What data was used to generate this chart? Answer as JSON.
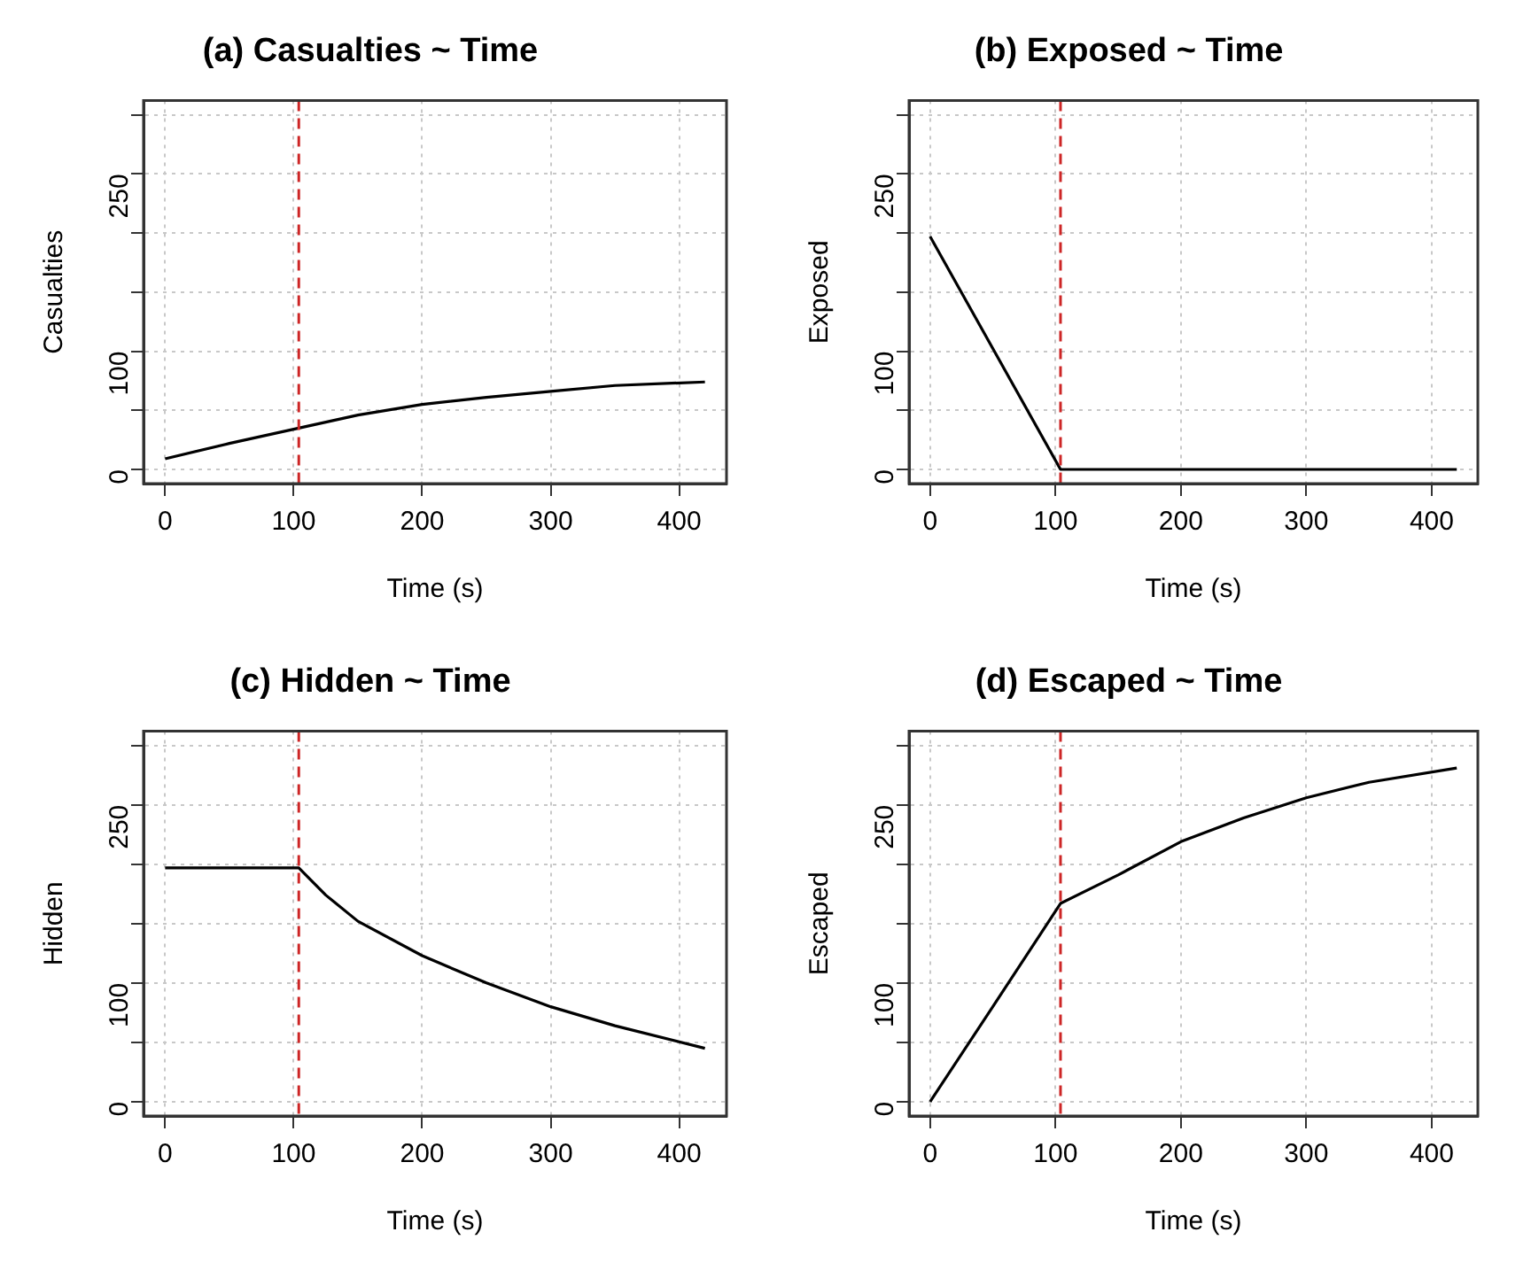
{
  "chart_data": [
    {
      "type": "line",
      "title": "(a) Casualties ~ Time",
      "xlabel": "Time (s)",
      "ylabel": "Casualties",
      "xlim": [
        -16.8,
        436.8
      ],
      "xticks": [
        0,
        100,
        200,
        300,
        400
      ],
      "ylim": [
        -12,
        312
      ],
      "yticks": [
        0,
        {
          "value": 50,
          "label": null
        },
        100,
        {
          "value": 150,
          "label": null
        },
        {
          "value": 200,
          "label": null
        },
        250,
        {
          "value": 300,
          "label": null
        }
      ],
      "grid": true,
      "ref_lines": [
        {
          "axis": "x",
          "value": 104,
          "color": "#cd2626",
          "line_style": "dashed"
        }
      ],
      "series": [
        {
          "color": "#000000",
          "x": [
            0,
            50,
            100,
            150,
            200,
            250,
            300,
            350,
            420
          ],
          "values": [
            9,
            22,
            34,
            46,
            55,
            61,
            66,
            71,
            74
          ]
        }
      ]
    },
    {
      "type": "line",
      "title": "(b) Exposed ~ Time",
      "xlabel": "Time (s)",
      "ylabel": "Exposed",
      "xlim": [
        -16.8,
        436.8
      ],
      "xticks": [
        0,
        100,
        200,
        300,
        400
      ],
      "ylim": [
        -12,
        312
      ],
      "yticks": [
        0,
        {
          "value": 50,
          "label": null
        },
        100,
        {
          "value": 150,
          "label": null
        },
        {
          "value": 200,
          "label": null
        },
        250,
        {
          "value": 300,
          "label": null
        }
      ],
      "grid": true,
      "ref_lines": [
        {
          "axis": "x",
          "value": 104,
          "color": "#cd2626",
          "line_style": "dashed"
        }
      ],
      "series": [
        {
          "color": "#000000",
          "x": [
            0,
            104,
            420
          ],
          "values": [
            197,
            0,
            0
          ]
        }
      ]
    },
    {
      "type": "line",
      "title": "(c) Hidden ~ Time",
      "xlabel": "Time (s)",
      "ylabel": "Hidden",
      "xlim": [
        -16.8,
        436.8
      ],
      "xticks": [
        0,
        100,
        200,
        300,
        400
      ],
      "ylim": [
        -12,
        312
      ],
      "yticks": [
        0,
        {
          "value": 50,
          "label": null
        },
        100,
        {
          "value": 150,
          "label": null
        },
        {
          "value": 200,
          "label": null
        },
        250,
        {
          "value": 300,
          "label": null
        }
      ],
      "grid": true,
      "ref_lines": [
        {
          "axis": "x",
          "value": 104,
          "color": "#cd2626",
          "line_style": "dashed"
        }
      ],
      "series": [
        {
          "color": "#000000",
          "x": [
            0,
            104,
            125,
            150,
            200,
            250,
            300,
            350,
            420
          ],
          "values": [
            197,
            197,
            174,
            152,
            123,
            100,
            80,
            64,
            45
          ]
        }
      ]
    },
    {
      "type": "line",
      "title": "(d) Escaped ~ Time",
      "xlabel": "Time (s)",
      "ylabel": "Escaped",
      "xlim": [
        -16.8,
        436.8
      ],
      "xticks": [
        0,
        100,
        200,
        300,
        400
      ],
      "ylim": [
        -12,
        312
      ],
      "yticks": [
        0,
        {
          "value": 50,
          "label": null
        },
        100,
        {
          "value": 150,
          "label": null
        },
        {
          "value": 200,
          "label": null
        },
        250,
        {
          "value": 300,
          "label": null
        }
      ],
      "grid": true,
      "ref_lines": [
        {
          "axis": "x",
          "value": 104,
          "color": "#cd2626",
          "line_style": "dashed"
        }
      ],
      "series": [
        {
          "color": "#000000",
          "x": [
            0,
            50,
            104,
            150,
            200,
            250,
            300,
            350,
            420
          ],
          "values": [
            0,
            80,
            167,
            191,
            219,
            239,
            256,
            269,
            281
          ]
        }
      ]
    }
  ]
}
